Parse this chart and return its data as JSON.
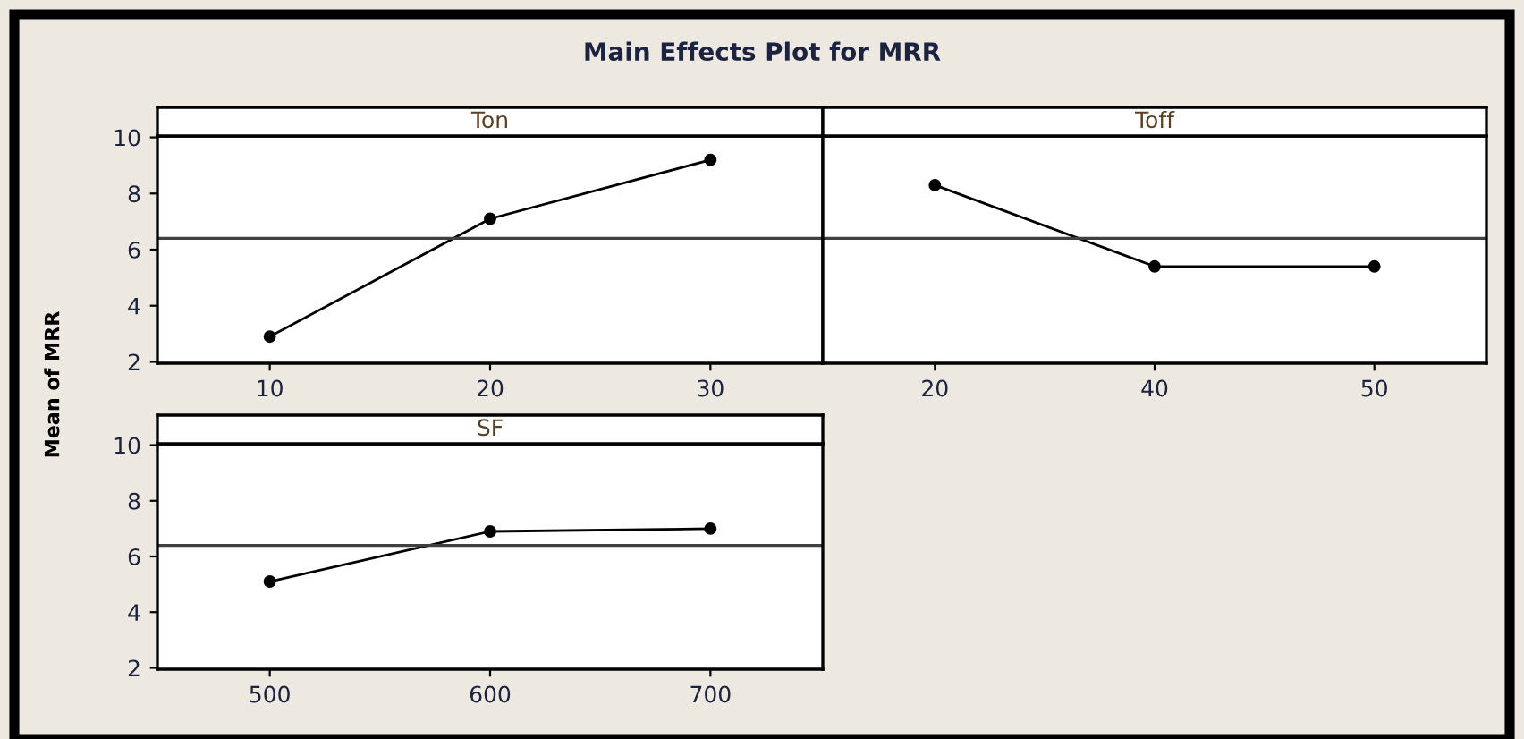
{
  "chart_data": [
    {
      "type": "line",
      "title": "Ton",
      "ylabel": "Mean of MRR",
      "annotations": [
        "Main Effects Plot for MRR"
      ],
      "categories": [
        "10",
        "20",
        "30"
      ],
      "values": [
        2.9,
        7.1,
        9.2
      ],
      "color": "#000000",
      "ylim": [
        1.95,
        10.05
      ],
      "yticks": [
        2,
        4,
        6,
        8,
        10
      ],
      "ref_lines": [
        {
          "axis": "y",
          "value": 6.4,
          "color": "#404040"
        }
      ],
      "marker": "circle",
      "line_style": "solid",
      "grid": false
    },
    {
      "type": "line",
      "title": "Toff",
      "categories": [
        "20",
        "40",
        "50"
      ],
      "values": [
        8.3,
        5.4,
        5.4
      ],
      "color": "#000000",
      "ylim": [
        1.95,
        10.05
      ],
      "yticks": [
        2,
        4,
        6,
        8,
        10
      ],
      "ref_lines": [
        {
          "axis": "y",
          "value": 6.4,
          "color": "#404040"
        }
      ],
      "marker": "circle",
      "line_style": "solid",
      "grid": false,
      "tick_labels": "x"
    },
    {
      "type": "line",
      "title": "SF",
      "categories": [
        "500",
        "600",
        "700"
      ],
      "values": [
        5.1,
        6.9,
        7.0
      ],
      "color": "#000000",
      "ylim": [
        1.95,
        10.05
      ],
      "yticks": [
        2,
        4,
        6,
        8,
        10
      ],
      "ref_lines": [
        {
          "axis": "y",
          "value": 6.4,
          "color": "#404040"
        }
      ],
      "marker": "circle",
      "line_style": "solid",
      "grid": false
    }
  ]
}
